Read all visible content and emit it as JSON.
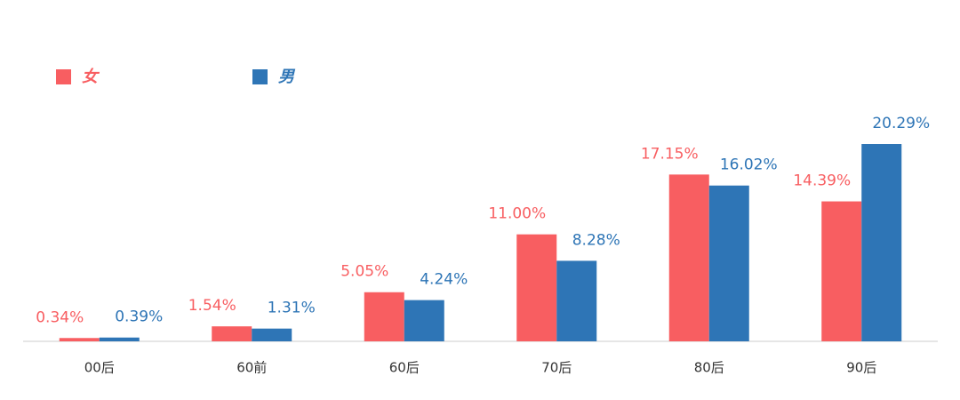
{
  "chart_data": {
    "type": "bar",
    "categories": [
      "00后",
      "60前",
      "60后",
      "70后",
      "80后",
      "90后"
    ],
    "series": [
      {
        "name": "女",
        "color": "#f85e61",
        "values": [
          0.34,
          1.54,
          5.05,
          11.0,
          17.15,
          14.39
        ],
        "value_labels": [
          "0.34%",
          "1.54%",
          "5.05%",
          "11.00%",
          "17.15%",
          "14.39%"
        ]
      },
      {
        "name": "男",
        "color": "#2e75b6",
        "values": [
          0.39,
          1.31,
          4.24,
          8.28,
          16.02,
          20.29
        ],
        "value_labels": [
          "0.39%",
          "1.31%",
          "4.24%",
          "8.28%",
          "16.02%",
          "20.29%"
        ]
      }
    ],
    "ylim": [
      0,
      22
    ]
  }
}
